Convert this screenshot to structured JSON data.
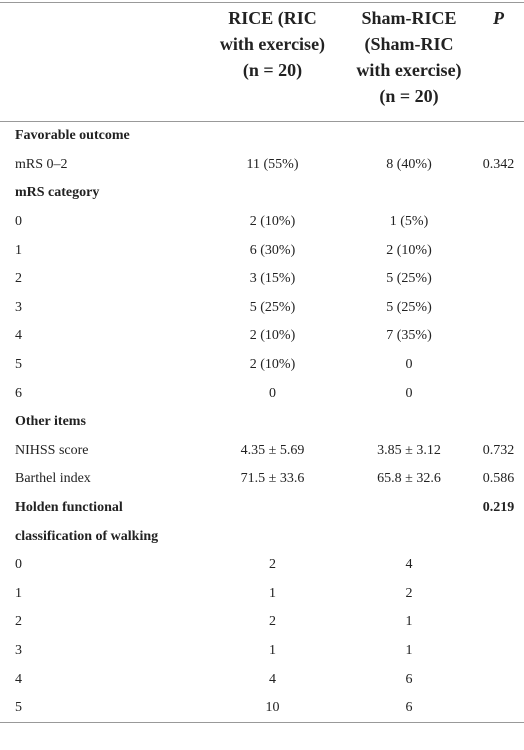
{
  "header": {
    "columns": [
      {
        "lines": [
          "RICE (RIC",
          "with exercise)",
          "(n = 20)"
        ]
      },
      {
        "lines": [
          "Sham-RICE",
          "(Sham-RIC",
          "with exercise)",
          "(n = 20)"
        ]
      },
      {
        "lines": [
          "P"
        ]
      }
    ]
  },
  "table": {
    "rows": [
      {
        "label": "Favorable outcome",
        "section": true
      },
      {
        "label": "mRS 0–2",
        "rice": "11 (55%)",
        "sham": "8 (40%)",
        "p": "0.342"
      },
      {
        "label": "mRS category",
        "section": true
      },
      {
        "label": "0",
        "rice": "2 (10%)",
        "sham": "1 (5%)"
      },
      {
        "label": "1",
        "rice": "6 (30%)",
        "sham": "2 (10%)"
      },
      {
        "label": "2",
        "rice": "3 (15%)",
        "sham": "5 (25%)"
      },
      {
        "label": "3",
        "rice": "5 (25%)",
        "sham": "5 (25%)"
      },
      {
        "label": "4",
        "rice": "2 (10%)",
        "sham": "7 (35%)"
      },
      {
        "label": "5",
        "rice": "2 (10%)",
        "sham": "0"
      },
      {
        "label": "6",
        "rice": "0",
        "sham": "0"
      },
      {
        "label": "Other items",
        "section": true
      },
      {
        "label": "NIHSS score",
        "rice": "4.35 ± 5.69",
        "sham": "3.85 ± 3.12",
        "p": "0.732"
      },
      {
        "label": "Barthel index",
        "rice": "71.5 ± 33.6",
        "sham": "65.8 ± 32.6",
        "p": "0.586"
      },
      {
        "label": "Holden functional",
        "p": "0.219",
        "section": true
      },
      {
        "label": "classification of walking",
        "section": true
      },
      {
        "label": "0",
        "rice": "2",
        "sham": "4"
      },
      {
        "label": "1",
        "rice": "1",
        "sham": "2"
      },
      {
        "label": "2",
        "rice": "2",
        "sham": "1"
      },
      {
        "label": "3",
        "rice": "1",
        "sham": "1"
      },
      {
        "label": "4",
        "rice": "4",
        "sham": "6"
      },
      {
        "label": "5",
        "rice": "10",
        "sham": "6"
      }
    ]
  }
}
